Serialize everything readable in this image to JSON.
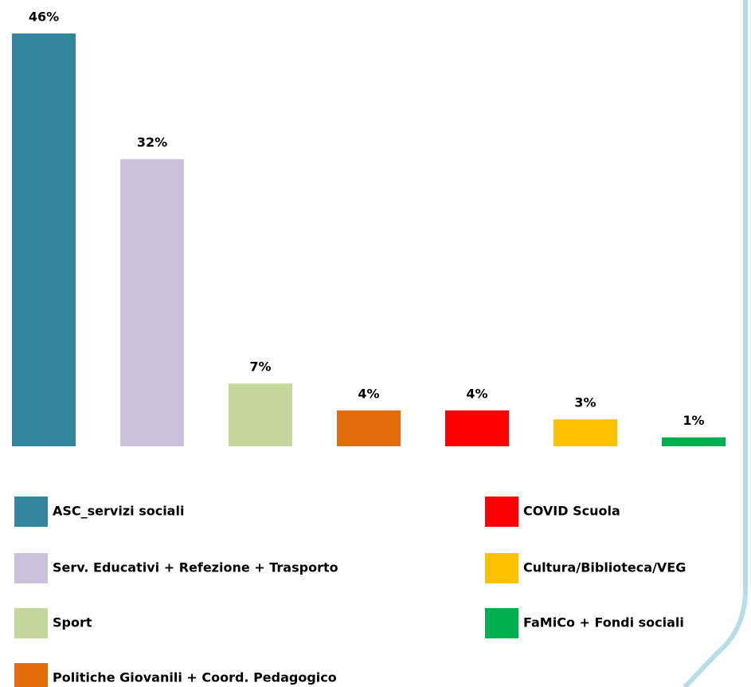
{
  "chart_data": {
    "type": "bar",
    "categories": [
      "ASC_servizi sociali",
      "Serv. Educativi + Refezione + Trasporto",
      "Sport",
      "Politiche Giovanili + Coord. Pedagogico",
      "COVID Scuola",
      "Cultura/Biblioteca/VEG",
      "FaMiCo + Fondi sociali"
    ],
    "values": [
      46,
      32,
      7,
      4,
      4,
      3,
      1
    ],
    "value_labels": [
      "46%",
      "32%",
      "7%",
      "4%",
      "4%",
      "3%",
      "1%"
    ],
    "colors": [
      "#31859c",
      "#ccc1da",
      "#c3d69b",
      "#e46c0a",
      "#ff0000",
      "#ffc000",
      "#00b050"
    ]
  }
}
